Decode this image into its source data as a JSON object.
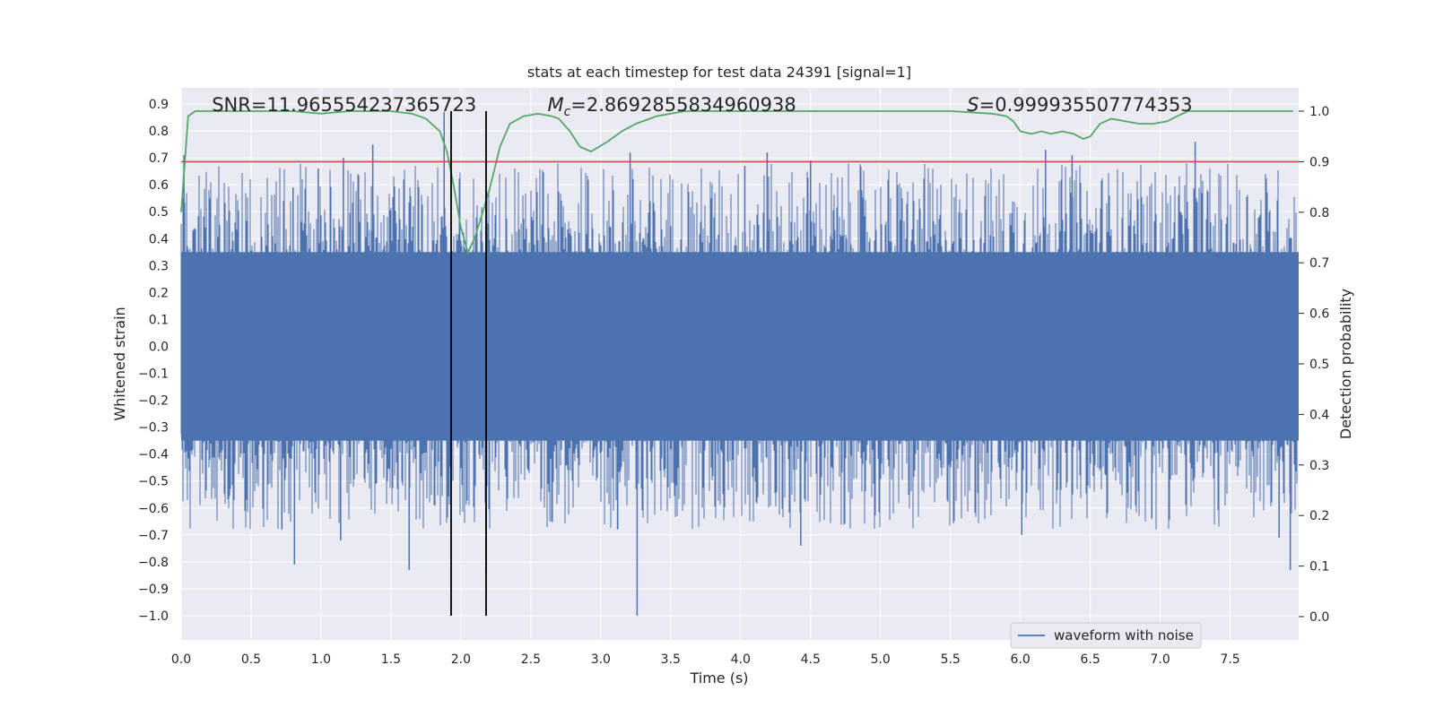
{
  "chart_data": {
    "type": "line",
    "title": "stats at each timestep for test data 24391 [signal=1]",
    "xlabel": "Time (s)",
    "ylabel_left": "Whitened strain",
    "ylabel_right": "Detection probability",
    "xlim": [
      0.0,
      7.99
    ],
    "ylim_left": [
      -1.09,
      0.96
    ],
    "ylim_right": [
      0.0,
      1.0
    ],
    "grid": true,
    "legend_position": "lower-right",
    "x_ticks": [
      "0.0",
      "0.5",
      "1.0",
      "1.5",
      "2.0",
      "2.5",
      "3.0",
      "3.5",
      "4.0",
      "4.5",
      "5.0",
      "5.5",
      "6.0",
      "6.5",
      "7.0",
      "7.5"
    ],
    "y_ticks_left": [
      "0.9",
      "0.8",
      "0.7",
      "0.6",
      "0.5",
      "0.4",
      "0.3",
      "0.2",
      "0.1",
      "0.0",
      "−0.1",
      "−0.2",
      "−0.3",
      "−0.4",
      "−0.5",
      "−0.6",
      "−0.7",
      "−0.8",
      "−0.9",
      "−1.0"
    ],
    "y_ticks_right": [
      "1.0",
      "0.9",
      "0.8",
      "0.7",
      "0.6",
      "0.5",
      "0.4",
      "0.3",
      "0.2",
      "0.1",
      "0.0"
    ],
    "annotations": [
      {
        "key": "snr",
        "text": "SNR=11.965554237365723",
        "x": 0.2
      },
      {
        "key": "mc",
        "text": "=2.8692855834960938",
        "symbol": "M",
        "subscript": "c",
        "x": 2.6
      },
      {
        "key": "spin",
        "text": "=0.999935507774353",
        "symbol": "S",
        "x": 5.6
      }
    ],
    "series": [
      {
        "name": "waveform with noise",
        "axis": "left",
        "style": "dense-noise",
        "color": "#4c72b0",
        "core_range": [
          -0.35,
          0.35
        ],
        "spike_peaks": [
          {
            "x": 0.02,
            "y": 0.71
          },
          {
            "x": 0.8,
            "y": 0.59
          },
          {
            "x": 0.98,
            "y": 0.66
          },
          {
            "x": 1.16,
            "y": 0.7
          },
          {
            "x": 1.37,
            "y": 0.75
          },
          {
            "x": 1.88,
            "y": 0.87
          },
          {
            "x": 3.21,
            "y": 0.72
          },
          {
            "x": 4.03,
            "y": 0.67
          },
          {
            "x": 4.19,
            "y": 0.72
          },
          {
            "x": 4.5,
            "y": 0.69
          },
          {
            "x": 6.18,
            "y": 0.73
          },
          {
            "x": 6.37,
            "y": 0.71
          },
          {
            "x": 7.25,
            "y": 0.76
          },
          {
            "x": 0.81,
            "y": -0.81
          },
          {
            "x": 1.63,
            "y": -0.83
          },
          {
            "x": 2.18,
            "y": -0.84
          },
          {
            "x": 3.26,
            "y": -1.0
          },
          {
            "x": 4.43,
            "y": -0.74
          },
          {
            "x": 7.93,
            "y": -0.83
          },
          {
            "x": 1.14,
            "y": -0.72
          },
          {
            "x": 0.72,
            "y": -0.68
          },
          {
            "x": 3.12,
            "y": -0.68
          },
          {
            "x": 6.01,
            "y": -0.7
          },
          {
            "x": 7.85,
            "y": -0.71
          },
          {
            "x": 6.94,
            "y": -0.64
          }
        ]
      },
      {
        "name": "",
        "axis": "right",
        "color": "#55a868",
        "x": [
          0.0,
          0.05,
          0.1,
          0.2,
          0.5,
          0.8,
          1.0,
          1.2,
          1.5,
          1.65,
          1.75,
          1.85,
          1.9,
          1.95,
          2.0,
          2.05,
          2.1,
          2.2,
          2.28,
          2.35,
          2.45,
          2.55,
          2.65,
          2.7,
          2.78,
          2.85,
          2.93,
          3.05,
          3.15,
          3.25,
          3.4,
          3.6,
          4.0,
          5.0,
          5.5,
          5.8,
          5.9,
          5.95,
          6.0,
          6.08,
          6.15,
          6.22,
          6.3,
          6.38,
          6.45,
          6.5,
          6.57,
          6.65,
          6.75,
          6.85,
          6.95,
          7.05,
          7.12,
          7.2,
          7.5,
          7.95
        ],
        "y": [
          0.8,
          0.99,
          1.0,
          1.0,
          1.0,
          1.0,
          0.995,
          1.0,
          1.0,
          0.995,
          0.985,
          0.96,
          0.92,
          0.85,
          0.77,
          0.72,
          0.75,
          0.84,
          0.93,
          0.975,
          0.99,
          0.995,
          0.99,
          0.985,
          0.96,
          0.93,
          0.92,
          0.94,
          0.96,
          0.975,
          0.99,
          1.0,
          1.0,
          1.0,
          1.0,
          0.995,
          0.99,
          0.98,
          0.96,
          0.955,
          0.96,
          0.955,
          0.96,
          0.955,
          0.945,
          0.95,
          0.975,
          0.985,
          0.98,
          0.975,
          0.975,
          0.98,
          0.99,
          1.0,
          1.0,
          1.0
        ]
      },
      {
        "name": "",
        "axis": "right",
        "color": "#c44e52",
        "type": "hline",
        "y": 0.9
      },
      {
        "name": "",
        "axis": "left",
        "color": "#000000",
        "type": "vlines",
        "x": [
          1.93,
          2.18
        ],
        "y_range": [
          -1.0,
          0.88
        ]
      }
    ]
  }
}
